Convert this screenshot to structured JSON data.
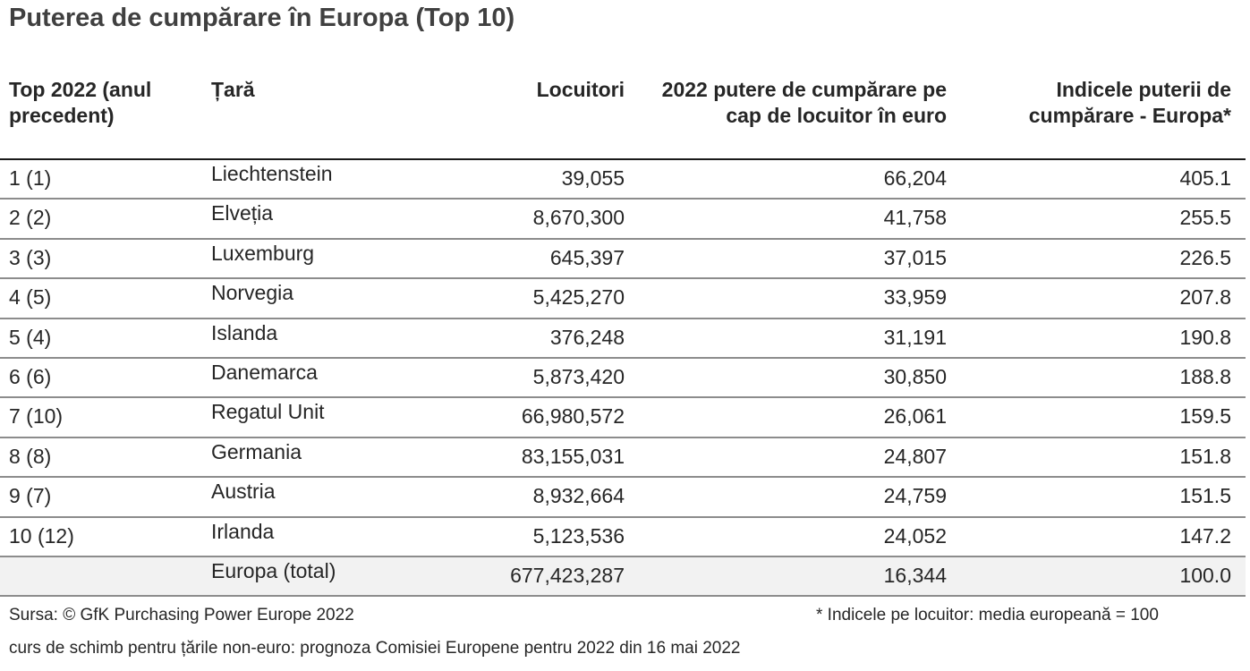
{
  "title": "Puterea de cumpărare în Europa (Top 10)",
  "headers": {
    "rank": "Top 2022 (anul precedent)",
    "country": "Țară",
    "population": "Locuitori",
    "ppp": "2022 putere de cumpărare pe cap de locuitor în euro",
    "index": "Indicele puterii de cumpărare - Europa*"
  },
  "rows": [
    {
      "rank": "1 (1)",
      "country": "Liechtenstein",
      "population": "39,055",
      "ppp": "66,204",
      "index": "405.1"
    },
    {
      "rank": "2 (2)",
      "country": "Elveția",
      "population": "8,670,300",
      "ppp": "41,758",
      "index": "255.5"
    },
    {
      "rank": "3 (3)",
      "country": "Luxemburg",
      "population": "645,397",
      "ppp": "37,015",
      "index": "226.5"
    },
    {
      "rank": "4 (5)",
      "country": "Norvegia",
      "population": "5,425,270",
      "ppp": "33,959",
      "index": "207.8"
    },
    {
      "rank": "5 (4)",
      "country": "Islanda",
      "population": "376,248",
      "ppp": "31,191",
      "index": "190.8"
    },
    {
      "rank": "6 (6)",
      "country": "Danemarca",
      "population": "5,873,420",
      "ppp": "30,850",
      "index": "188.8"
    },
    {
      "rank": "7 (10)",
      "country": "Regatul Unit",
      "population": "66,980,572",
      "ppp": "26,061",
      "index": "159.5"
    },
    {
      "rank": "8 (8)",
      "country": "Germania",
      "population": "83,155,031",
      "ppp": "24,807",
      "index": "151.8"
    },
    {
      "rank": "9 (7)",
      "country": "Austria",
      "population": "8,932,664",
      "ppp": "24,759",
      "index": "151.5"
    },
    {
      "rank": "10 (12)",
      "country": "Irlanda",
      "population": "5,123,536",
      "ppp": "24,052",
      "index": "147.2"
    }
  ],
  "total": {
    "rank": "",
    "country": "Europa (total)",
    "population": "677,423,287",
    "ppp": "16,344",
    "index": "100.0"
  },
  "footer": {
    "source": "Sursa: © GfK Purchasing Power Europe 2022",
    "note": "* Indicele pe locuitor: media europeană = 100",
    "exchange": "curs de schimb pentru țările non-euro: prognoza Comisiei Europene pentru 2022 din 16 mai 2022"
  }
}
